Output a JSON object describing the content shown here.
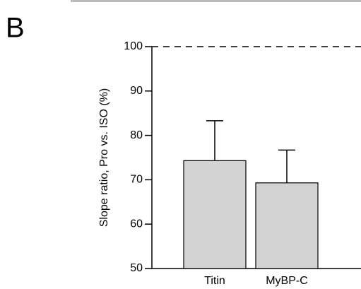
{
  "chart_data": {
    "type": "bar",
    "panel_label": "B",
    "y_label": "Slope ratio, Pro vs. ISO (%)",
    "categories": [
      "Titin",
      "MyBP-C"
    ],
    "values": [
      74.3,
      69.3
    ],
    "errors": [
      9.0,
      7.4
    ],
    "color": "#d3d3d3",
    "ylim": [
      50,
      100
    ],
    "yticks": [
      50,
      60,
      70,
      80,
      90,
      100
    ],
    "reference_line": 100
  }
}
